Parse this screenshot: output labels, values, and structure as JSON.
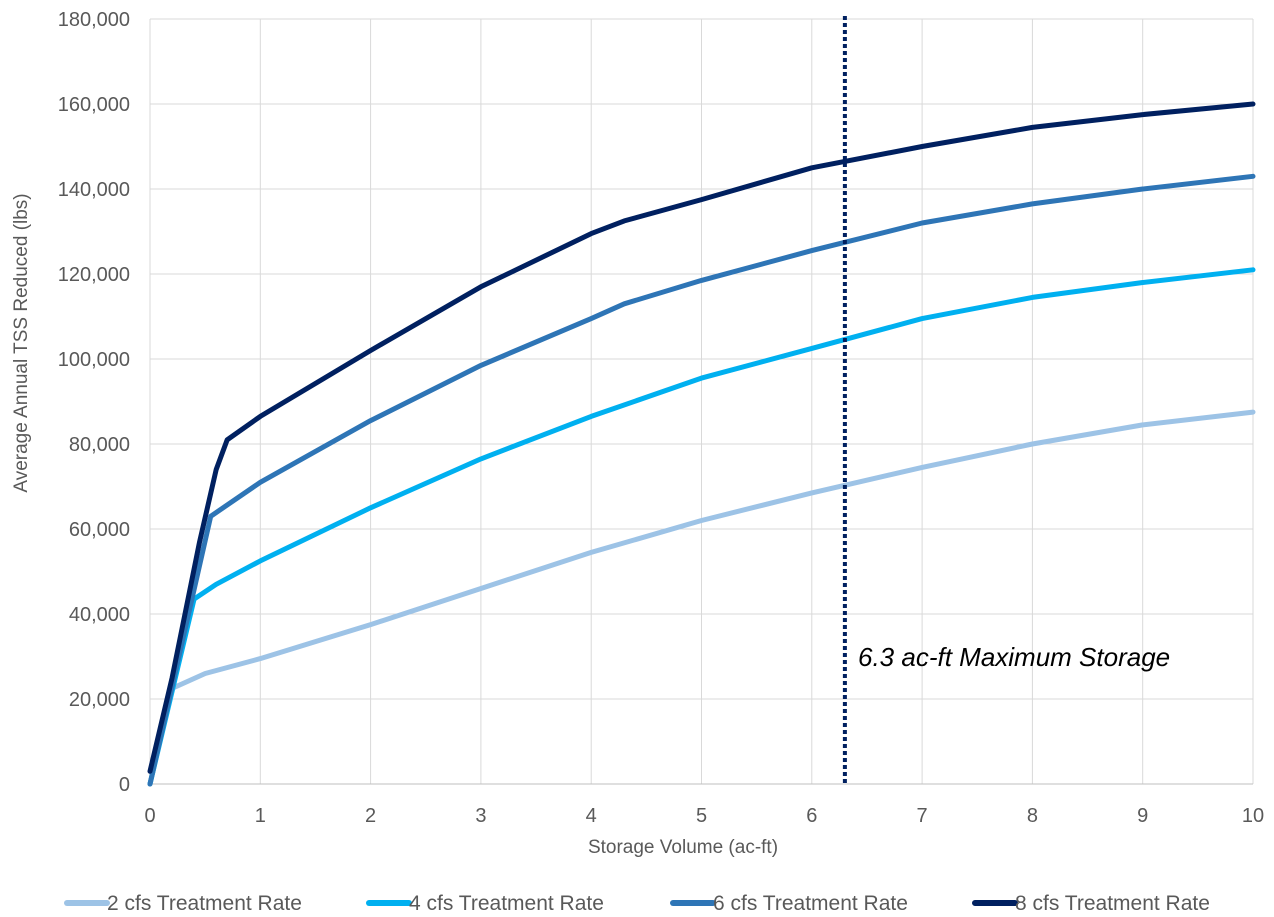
{
  "chart_data": {
    "type": "line",
    "title": "",
    "xlabel": "Storage Volume (ac-ft)",
    "ylabel": "Average Annual TSS Reduced (lbs)",
    "xlim": [
      0,
      10
    ],
    "ylim": [
      0,
      180000
    ],
    "x_ticks": [
      "0",
      "1",
      "2",
      "3",
      "4",
      "5",
      "6",
      "7",
      "8",
      "9",
      "10"
    ],
    "y_ticks": [
      "0",
      "20,000",
      "40,000",
      "60,000",
      "80,000",
      "100,000",
      "120,000",
      "140,000",
      "160,000",
      "180,000"
    ],
    "grid": true,
    "legend_position": "bottom",
    "series": [
      {
        "name": "2 cfs Treatment Rate",
        "color": "#9dc3e6",
        "points": [
          [
            0,
            0
          ],
          [
            0.2,
            22500
          ],
          [
            0.5,
            26000
          ],
          [
            1,
            29500
          ],
          [
            2,
            37500
          ],
          [
            3,
            46000
          ],
          [
            4,
            54500
          ],
          [
            5,
            62000
          ],
          [
            6,
            68500
          ],
          [
            7,
            74500
          ],
          [
            8,
            80000
          ],
          [
            9,
            84500
          ],
          [
            10,
            87500
          ]
        ]
      },
      {
        "name": "4 cfs Treatment Rate",
        "color": "#00b0f0",
        "points": [
          [
            0,
            0
          ],
          [
            0.4,
            43500
          ],
          [
            0.6,
            47000
          ],
          [
            1,
            52500
          ],
          [
            2,
            65000
          ],
          [
            3,
            76500
          ],
          [
            4,
            86500
          ],
          [
            5,
            95500
          ],
          [
            6,
            102500
          ],
          [
            7,
            109500
          ],
          [
            8,
            114500
          ],
          [
            9,
            118000
          ],
          [
            10,
            121000
          ]
        ]
      },
      {
        "name": "6 cfs Treatment Rate",
        "color": "#2e75b6",
        "points": [
          [
            0,
            0
          ],
          [
            0.55,
            63000
          ],
          [
            1,
            71000
          ],
          [
            2,
            85500
          ],
          [
            3,
            98500
          ],
          [
            4,
            109500
          ],
          [
            4.3,
            113000
          ],
          [
            5,
            118500
          ],
          [
            6,
            125500
          ],
          [
            7,
            132000
          ],
          [
            8,
            136500
          ],
          [
            9,
            140000
          ],
          [
            10,
            143000
          ]
        ]
      },
      {
        "name": "8 cfs Treatment Rate",
        "color": "#002060",
        "points": [
          [
            0,
            3000
          ],
          [
            0.2,
            25000
          ],
          [
            0.45,
            57000
          ],
          [
            0.6,
            74000
          ],
          [
            0.7,
            81000
          ],
          [
            1,
            86500
          ],
          [
            2,
            102000
          ],
          [
            3,
            117000
          ],
          [
            4,
            129500
          ],
          [
            4.3,
            132500
          ],
          [
            5,
            137500
          ],
          [
            6,
            145000
          ],
          [
            7,
            150000
          ],
          [
            8,
            154500
          ],
          [
            9,
            157500
          ],
          [
            10,
            160000
          ]
        ]
      }
    ],
    "reference_line": {
      "x": 6.3,
      "color": "#002060",
      "style": "dotted",
      "label": "6.3 ac-ft Maximum Storage"
    }
  }
}
